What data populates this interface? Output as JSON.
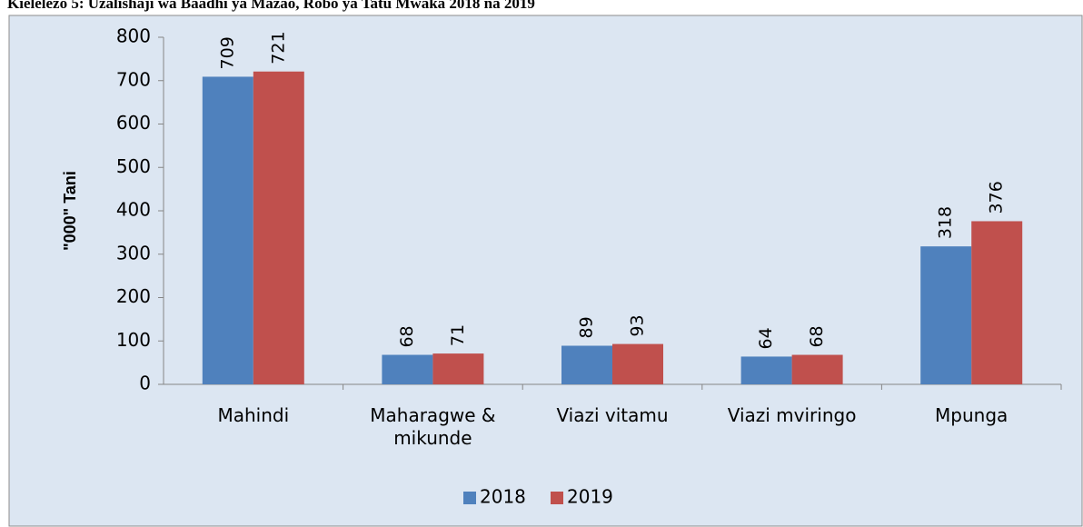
{
  "chart_data": {
    "type": "bar",
    "title": "Kielelezo 5: Uzalishaji wa Baadhi ya Mazao, Robo ya Tatu Mwaka 2018 na 2019",
    "y_label": "\"000\" Tani",
    "categories": [
      "Mahindi",
      "Maharagwe & mikunde",
      "Viazi vitamu",
      "Viazi mviringo",
      "Mpunga"
    ],
    "series": [
      {
        "name": "2018",
        "color": "#4f81bd",
        "values": [
          709,
          68,
          89,
          64,
          318
        ]
      },
      {
        "name": "2019",
        "color": "#c0504d",
        "values": [
          721,
          71,
          93,
          68,
          376
        ]
      }
    ],
    "ylim": [
      0,
      800
    ],
    "yticks": [
      0,
      100,
      200,
      300,
      400,
      500,
      600,
      700,
      800
    ],
    "legend": "bottom"
  }
}
